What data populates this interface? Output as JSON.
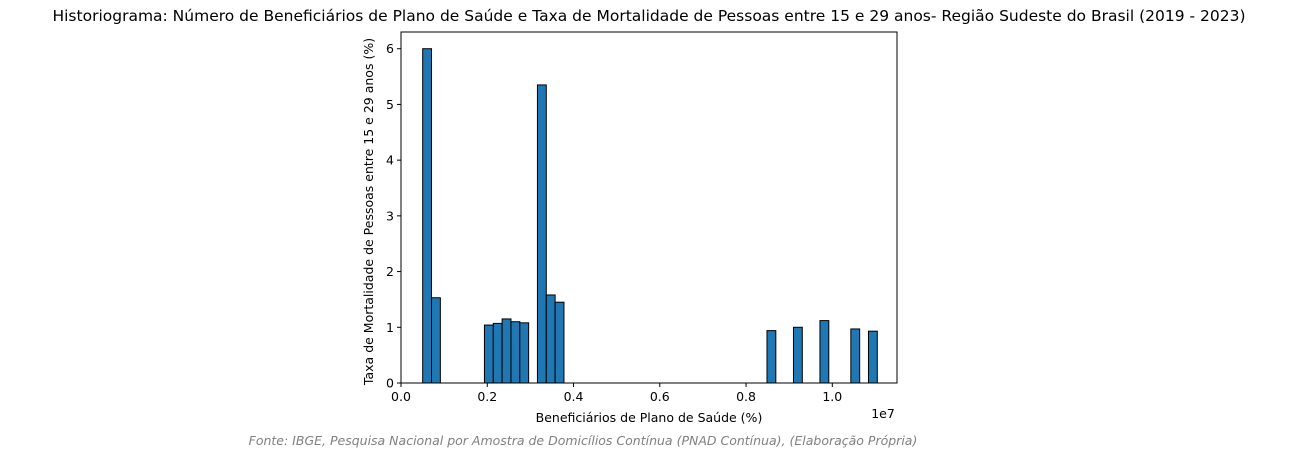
{
  "chart_data": {
    "type": "bar",
    "title": "Historiograma: Número de Beneficiários de Plano de Saúde e Taxa de Mortalidade de Pessoas entre 15 e 29 anos- Região Sudeste do Brasil (2019 - 2023)",
    "xlabel": "Beneficiários de Plano de Saúde (%)",
    "ylabel": "Taxa de Mortalidade de Pessoas entre 15 e 29 anos (%)",
    "x_offset_label": "1e7",
    "xlim": [
      0,
      1.15
    ],
    "ylim": [
      0,
      6.3
    ],
    "x_ticks": [
      "0.0",
      "0.2",
      "0.4",
      "0.6",
      "0.8",
      "1.0"
    ],
    "y_ticks": [
      "0",
      "1",
      "2",
      "3",
      "4",
      "5",
      "6"
    ],
    "bar_width": 0.0205,
    "bar_color": "#1f77b4",
    "edge_color": "#000000",
    "bars": [
      {
        "x": 0.0605,
        "value": 6.0
      },
      {
        "x": 0.081,
        "value": 1.53
      },
      {
        "x": 0.2037,
        "value": 1.04
      },
      {
        "x": 0.2242,
        "value": 1.07
      },
      {
        "x": 0.2447,
        "value": 1.15
      },
      {
        "x": 0.2652,
        "value": 1.1
      },
      {
        "x": 0.2857,
        "value": 1.08
      },
      {
        "x": 0.3266,
        "value": 5.35
      },
      {
        "x": 0.3471,
        "value": 1.58
      },
      {
        "x": 0.3676,
        "value": 1.45
      },
      {
        "x": 0.8588,
        "value": 0.94
      },
      {
        "x": 0.9202,
        "value": 1.0
      },
      {
        "x": 0.9816,
        "value": 1.12
      },
      {
        "x": 1.0532,
        "value": 0.97
      },
      {
        "x": 1.0941,
        "value": 0.93
      }
    ],
    "grid": false,
    "source": "Fonte: IBGE, Pesquisa Nacional por Amostra de Domicílios Contínua (PNAD Contínua), (Elaboração Própria)"
  }
}
